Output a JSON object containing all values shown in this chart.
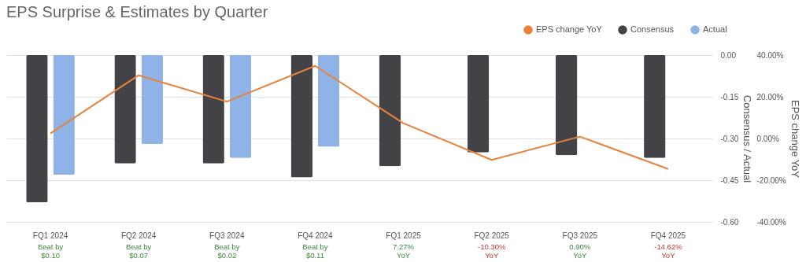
{
  "chart_data": {
    "type": "bar",
    "title": "EPS Surprise & Estimates by Quarter",
    "categories": [
      "FQ1 2024",
      "FQ2 2024",
      "FQ3 2024",
      "FQ4 2024",
      "FQ1 2025",
      "FQ2 2025",
      "FQ3 2025",
      "FQ4 2025"
    ],
    "series": [
      {
        "name": "EPS change YoY",
        "type": "line",
        "axis": "y2",
        "color": "#e8823a",
        "values": [
          2.4,
          30.3,
          17.7,
          34.8,
          7.3,
          -10.3,
          0.9,
          -14.6
        ]
      },
      {
        "name": "Consensus",
        "color": "#434247",
        "values": [
          -0.53,
          -0.39,
          -0.39,
          -0.44,
          -0.4,
          -0.35,
          -0.36,
          -0.37
        ]
      },
      {
        "name": "Actual",
        "color": "#8fb3e6",
        "values": [
          -0.43,
          -0.32,
          -0.37,
          -0.33,
          null,
          null,
          null,
          null
        ]
      }
    ],
    "ylabel": "Consensus / Actual",
    "y2label": "EPS change YoY",
    "ylim": [
      -0.6,
      0
    ],
    "yticks": [
      {
        "value": 0,
        "label": "0.00"
      },
      {
        "value": -0.15,
        "label": "-0.15"
      },
      {
        "value": -0.3,
        "label": "-0.30"
      },
      {
        "value": -0.45,
        "label": "-0.45"
      },
      {
        "value": -0.6,
        "label": "-0.60"
      }
    ],
    "y2lim": [
      -40,
      40
    ],
    "y2ticks": [
      {
        "value": 40,
        "label": "40.00%"
      },
      {
        "value": 20,
        "label": "20.00%"
      },
      {
        "value": 0,
        "label": "0.00%"
      },
      {
        "value": -20,
        "label": "-20.00%"
      },
      {
        "value": -40,
        "label": "-40.00%"
      }
    ],
    "grid": "y",
    "legend": "top right",
    "marker": "none",
    "line_style": "solid",
    "annotations": [
      "Beat by\n$0.10",
      "Beat by\n$0.07",
      "Beat by\n$0.02",
      "Beat by\n$0.11",
      "7.27%\nYoY",
      "-10.30%\nYoY",
      "0.90%\nYoY",
      "-14.62%\nYoY"
    ]
  }
}
